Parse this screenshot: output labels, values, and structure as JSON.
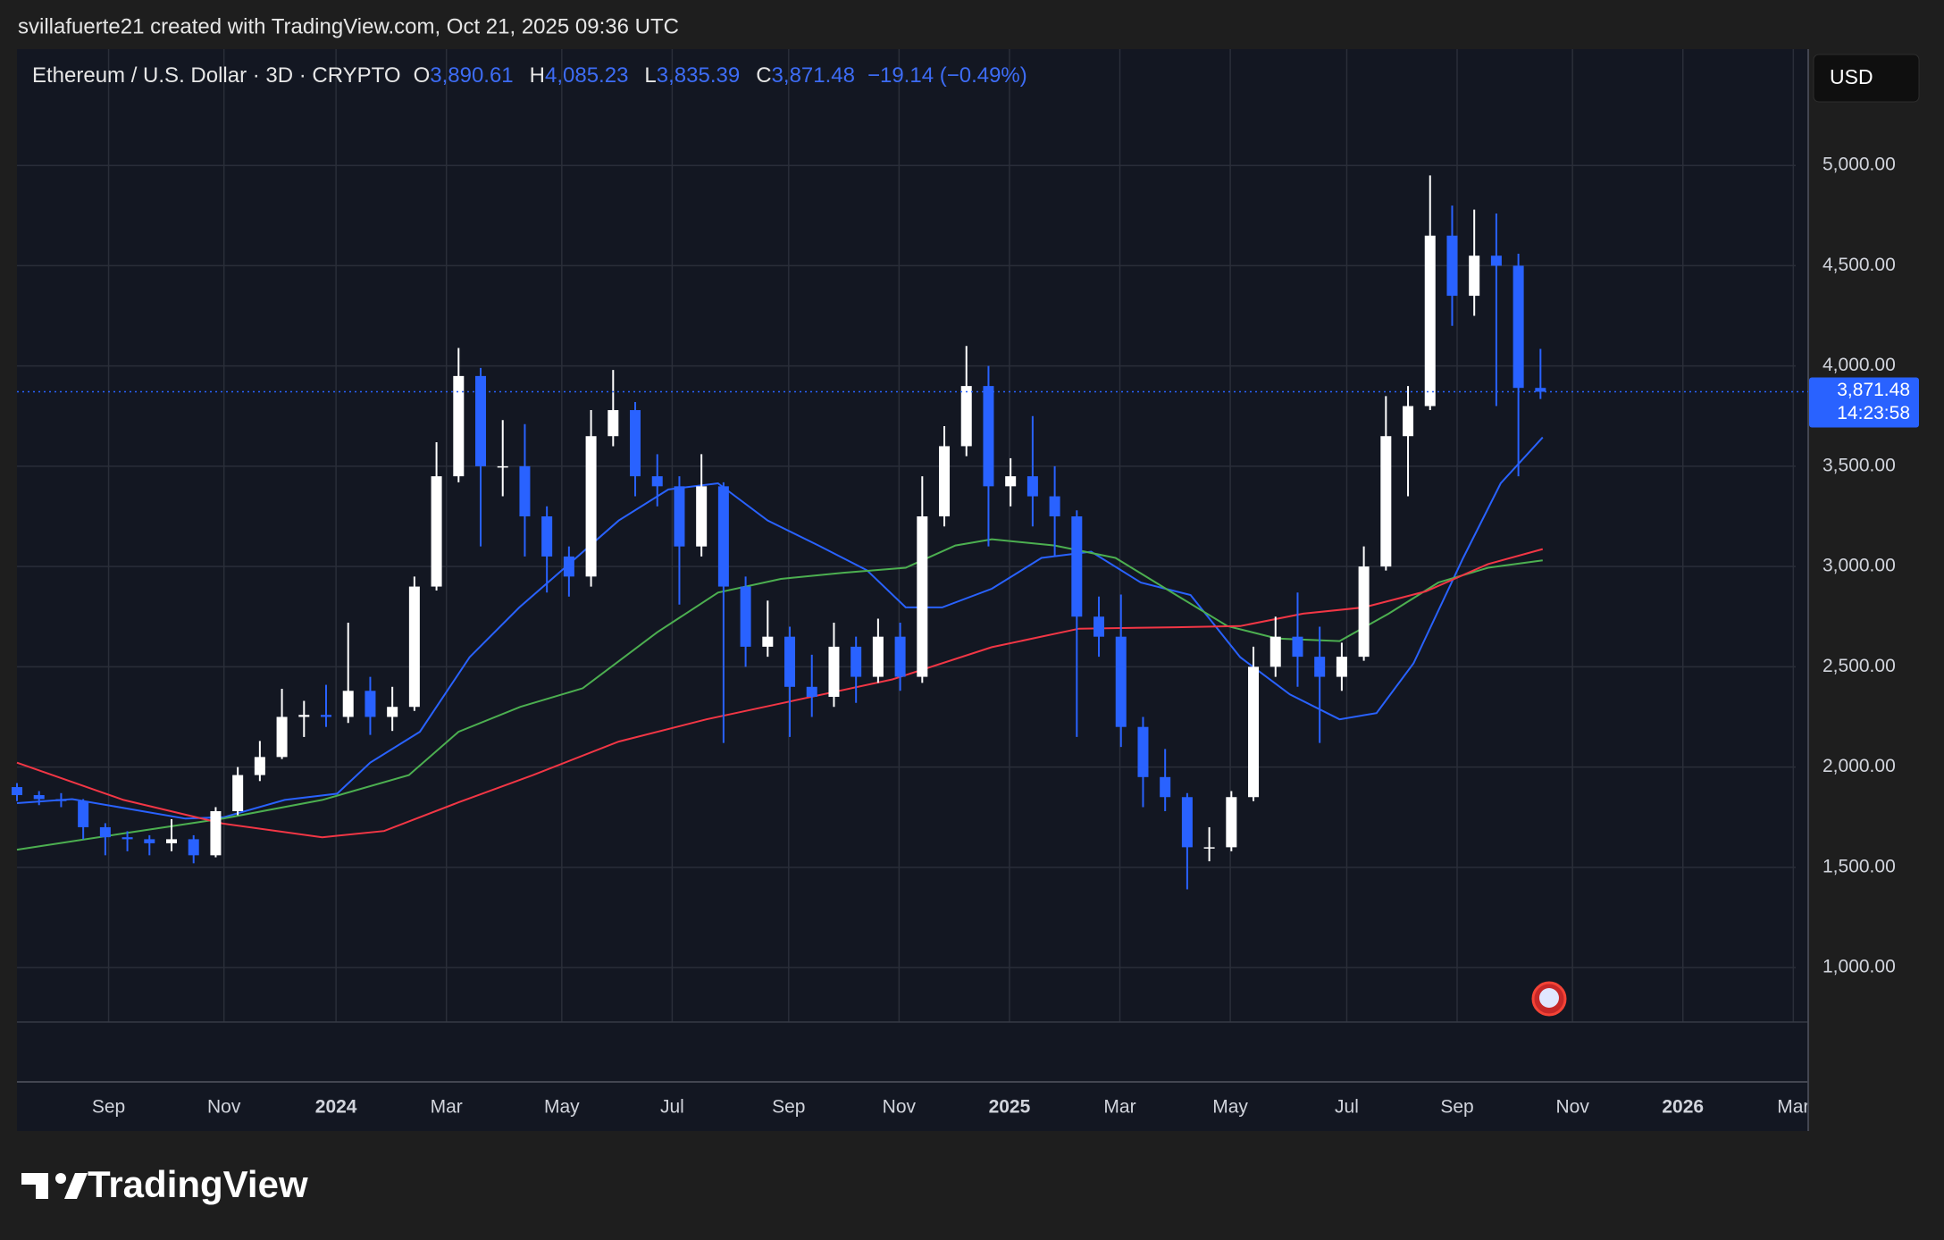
{
  "header": {
    "attribution": "svillafuerte21 created with TradingView.com, Oct 21, 2025 09:36 UTC",
    "currency": "USD",
    "brand": "TradingView"
  },
  "chart_data": {
    "type": "candlestick",
    "title": "Ethereum / U.S. Dollar · 3D · CRYPTO",
    "ohlc": [
      {
        "key": "O",
        "value": 3890.61,
        "label": "3,890.61"
      },
      {
        "key": "H",
        "value": 4085.23,
        "label": "4,085.23"
      },
      {
        "key": "L",
        "value": 3835.39,
        "label": "3,835.39"
      },
      {
        "key": "C",
        "value": 3871.48,
        "label": "3,871.48"
      }
    ],
    "change": "−19.14 (−0.49%)",
    "last_price": {
      "value": 3871.48,
      "label": "3,871.48",
      "countdown": "14:23:58"
    },
    "up_color": "#ffffff",
    "down_color": "#2962ff",
    "grid": true,
    "x": [
      0,
      4,
      8,
      12,
      16,
      20,
      24,
      28,
      32,
      36,
      40,
      44,
      48,
      52,
      56,
      60,
      64,
      68,
      72,
      76,
      80,
      84,
      88,
      92,
      96,
      100,
      104,
      108,
      112,
      116,
      120,
      124,
      128,
      132,
      136,
      140,
      144,
      148,
      152,
      156,
      160,
      164,
      168,
      172,
      176,
      180,
      184,
      188,
      192,
      196,
      200,
      204,
      208,
      212,
      216,
      220,
      224,
      228,
      232,
      236,
      240,
      244,
      248,
      252,
      256,
      260,
      264,
      268,
      272,
      276
    ],
    "open": [
      1900,
      1860,
      1840,
      1830,
      1700,
      1650,
      1640,
      1620,
      1640,
      1560,
      1780,
      1960,
      2050,
      2250,
      2260,
      2250,
      2380,
      2250,
      2300,
      2900,
      3450,
      3950,
      3500,
      3500,
      3250,
      3050,
      2950,
      3650,
      3780,
      3450,
      3400,
      3100,
      3400,
      2900,
      2600,
      2650,
      2400,
      2350,
      2600,
      2450,
      2650,
      2450,
      3250,
      3600,
      3900,
      3400,
      3450,
      3350,
      3250,
      2750,
      2650,
      2200,
      1950,
      1850,
      1600,
      1600,
      1850,
      2500,
      2650,
      2550,
      2450,
      2550,
      3000,
      3650,
      3800,
      4650,
      4350,
      4550,
      4500,
      3890.61
    ],
    "high": [
      1920,
      1880,
      1870,
      1840,
      1720,
      1680,
      1660,
      1740,
      1660,
      1800,
      2000,
      2130,
      2390,
      2330,
      2410,
      2720,
      2450,
      2400,
      2950,
      3620,
      4090,
      3990,
      3730,
      3710,
      3300,
      3100,
      3780,
      3980,
      3820,
      3560,
      3450,
      3560,
      3420,
      2950,
      2830,
      2700,
      2560,
      2720,
      2650,
      2740,
      2720,
      3450,
      3700,
      4100,
      4000,
      3540,
      3750,
      3500,
      3280,
      2850,
      2860,
      2250,
      2090,
      1870,
      1700,
      1880,
      2600,
      2750,
      2870,
      2700,
      2620,
      3100,
      3850,
      3900,
      4950,
      4800,
      4780,
      4760,
      4560,
      4085.23
    ],
    "low": [
      1830,
      1810,
      1800,
      1640,
      1560,
      1580,
      1560,
      1580,
      1520,
      1550,
      1760,
      1930,
      2040,
      2150,
      2200,
      2220,
      2160,
      2180,
      2280,
      2880,
      3420,
      3100,
      3350,
      3050,
      2870,
      2850,
      2900,
      3600,
      3350,
      3300,
      2810,
      3050,
      2120,
      2500,
      2550,
      2150,
      2250,
      2300,
      2320,
      2420,
      2380,
      2420,
      3200,
      3550,
      3100,
      3300,
      3200,
      3050,
      2150,
      2550,
      2100,
      1800,
      1780,
      1390,
      1530,
      1580,
      1830,
      2450,
      2400,
      2120,
      2380,
      2530,
      2980,
      3350,
      3780,
      4200,
      4250,
      3800,
      3450,
      3835.39
    ],
    "close": [
      1860,
      1840,
      1830,
      1700,
      1650,
      1640,
      1620,
      1640,
      1560,
      1780,
      1960,
      2050,
      2250,
      2260,
      2250,
      2380,
      2250,
      2300,
      2900,
      3450,
      3950,
      3500,
      3500,
      3250,
      3050,
      2950,
      3650,
      3780,
      3450,
      3400,
      3100,
      3400,
      2900,
      2600,
      2650,
      2400,
      2350,
      2600,
      2450,
      2650,
      2450,
      3250,
      3600,
      3900,
      3400,
      3450,
      3350,
      3250,
      2750,
      2650,
      2200,
      1950,
      1850,
      1600,
      1600,
      1850,
      2500,
      2650,
      2550,
      2450,
      2550,
      3000,
      3650,
      3800,
      4650,
      4350,
      4550,
      4500,
      3890.61,
      3871.48
    ],
    "ma_lines": [
      {
        "color": "#2962ff",
        "x": [
          0,
          10,
          30.5,
          37.5,
          48.5,
          58,
          64,
          73,
          82,
          91,
          100,
          109,
          118,
          127,
          136,
          145.2,
          154,
          161,
          167.6,
          176.6,
          185.6,
          194.6,
          203.6,
          212.6,
          221.6,
          230.6,
          239.6,
          246.3,
          253,
          262,
          268.8,
          276.4
        ],
        "values": [
          1820,
          1840,
          1743,
          1750,
          1836,
          1867,
          2022,
          2176,
          2548,
          2796,
          3012,
          3229,
          3384,
          3415,
          3229,
          3105,
          2981,
          2796,
          2796,
          2889,
          3043,
          3074,
          2920,
          2858,
          2548,
          2362,
          2238,
          2269,
          2517,
          3043,
          3415,
          3644
        ]
      },
      {
        "color": "#4caf50",
        "x": [
          0,
          19.3,
          37.3,
          55.3,
          71,
          80,
          91.2,
          102.5,
          116,
          127,
          138.4,
          149.7,
          161,
          170,
          176.6,
          188,
          199,
          210,
          219.3,
          228.3,
          239.6,
          248.5,
          257.5,
          266.5,
          276.4
        ],
        "values": [
          1588,
          1669,
          1743,
          1836,
          1960,
          2176,
          2300,
          2393,
          2672,
          2870,
          2938,
          2969,
          2994,
          3105,
          3136,
          3105,
          3043,
          2858,
          2703,
          2641,
          2628,
          2765,
          2920,
          2994,
          3031
        ]
      },
      {
        "color": "#f23645",
        "x": [
          0,
          19.3,
          37.3,
          55.3,
          66.5,
          80,
          93.5,
          109,
          124.9,
          140.7,
          158.6,
          176.6,
          192.4,
          210,
          221.6,
          233,
          244,
          255.2,
          266.5,
          276.4
        ],
        "values": [
          2022,
          1836,
          1718,
          1650,
          1681,
          1824,
          1960,
          2127,
          2238,
          2331,
          2437,
          2598,
          2690,
          2697,
          2703,
          2765,
          2796,
          2876,
          3012,
          3087
        ]
      }
    ],
    "xlim": [
      0,
      324.5
    ],
    "xticks": [
      {
        "value": 16.6,
        "label": "Sep"
      },
      {
        "value": 37.5,
        "label": "Nov"
      },
      {
        "value": 57.8,
        "label": "2024"
      },
      {
        "value": 77.8,
        "label": "Mar"
      },
      {
        "value": 98.7,
        "label": "May"
      },
      {
        "value": 118.7,
        "label": "Jul"
      },
      {
        "value": 139.8,
        "label": "Sep"
      },
      {
        "value": 159.8,
        "label": "Nov"
      },
      {
        "value": 179.8,
        "label": "2025"
      },
      {
        "value": 199.8,
        "label": "Mar"
      },
      {
        "value": 219.8,
        "label": "May"
      },
      {
        "value": 240.9,
        "label": "Jul"
      },
      {
        "value": 260.9,
        "label": "Sep"
      },
      {
        "value": 281.8,
        "label": "Nov"
      },
      {
        "value": 301.8,
        "label": "2026"
      },
      {
        "value": 321.8,
        "label": "Mar"
      }
    ],
    "ylim": [
      430,
      5580
    ],
    "yticks": [
      {
        "value": 1000,
        "label": "1,000.00"
      },
      {
        "value": 1500,
        "label": "1,500.00"
      },
      {
        "value": 2000,
        "label": "2,000.00"
      },
      {
        "value": 2500,
        "label": "2,500.00"
      },
      {
        "value": 3000,
        "label": "3,000.00"
      },
      {
        "value": 3500,
        "label": "3,500.00"
      },
      {
        "value": 4000,
        "label": "4,000.00"
      },
      {
        "value": 4500,
        "label": "4,500.00"
      },
      {
        "value": 5000,
        "label": "5,000.00"
      }
    ]
  }
}
